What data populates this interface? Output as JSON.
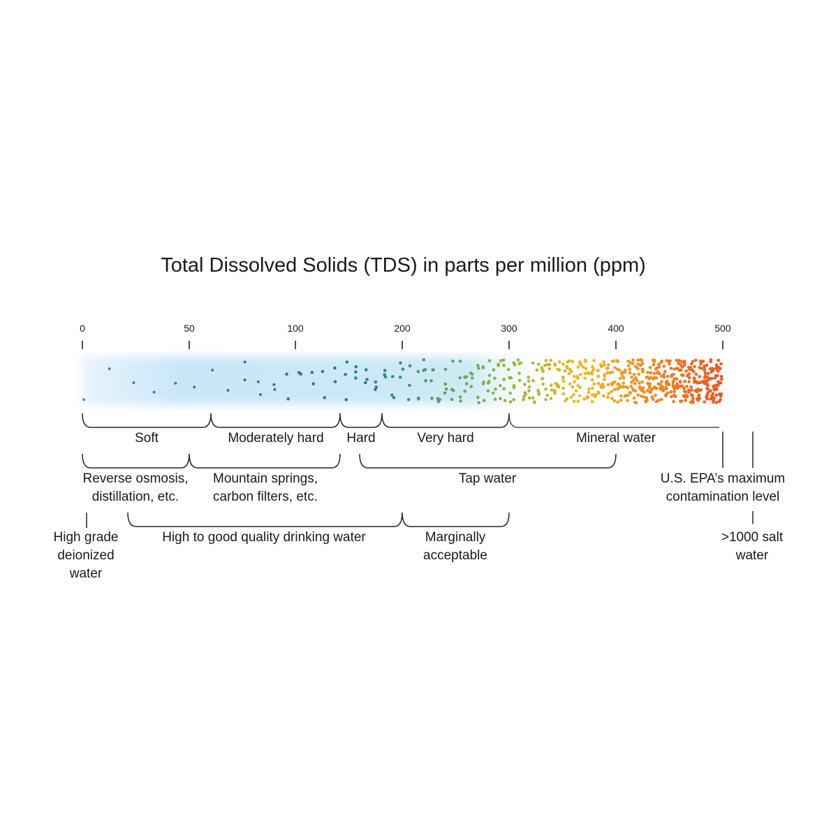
{
  "title": "Total Dissolved Solids (TDS) in parts per million (ppm)",
  "axis_ticks": [
    "0",
    "50",
    "100",
    "200",
    "300",
    "400",
    "500"
  ],
  "colors": {
    "low": "#3a8fd0",
    "mid": "#2a9a8a",
    "green": "#8ab848",
    "yellow": "#f0b820",
    "high": "#ee5a20",
    "glow": "#cfe9fa"
  },
  "row1": [
    "Soft",
    "Moderately hard",
    "Hard",
    "Very hard",
    "Mineral water"
  ],
  "row2": [
    "Reverse osmosis,\ndistillation, etc.",
    "Mountain springs,\ncarbon filters, etc.",
    "Tap water",
    "U.S. EPA’s maximum\ncontamination level"
  ],
  "row3": [
    "High grade\ndeionized\nwater",
    "High to good quality drinking water",
    "Marginally\nacceptable",
    ">1000 salt\nwater"
  ]
}
